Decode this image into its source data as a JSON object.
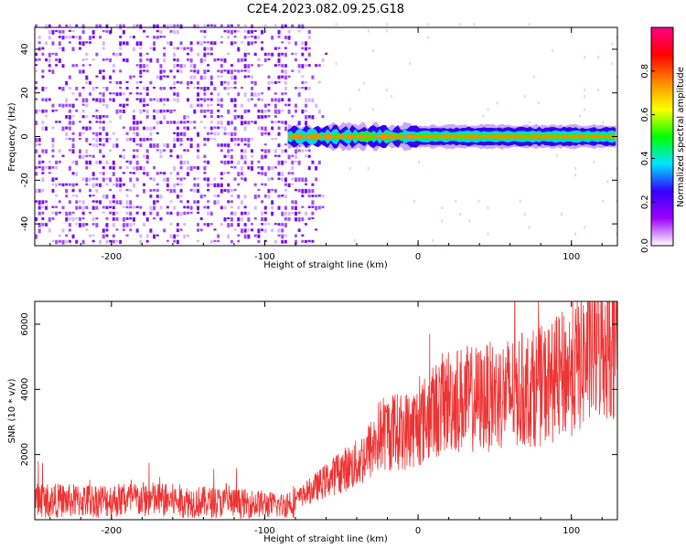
{
  "title": "C2E4.2023.082.09.25.G18",
  "chart_data": [
    {
      "type": "heatmap",
      "xlabel": "Height of straight line (km)",
      "ylabel": "Frequency (Hz)",
      "xlim": [
        -250,
        130
      ],
      "ylim": [
        -50,
        50
      ],
      "x_ticks": [
        -200,
        -100,
        0,
        100
      ],
      "x_tick_labels": [
        "-200",
        "-100",
        "0",
        "100"
      ],
      "y_ticks": [
        -40,
        -20,
        0,
        20,
        40
      ],
      "y_tick_labels": [
        "-40",
        "-20",
        "0",
        "20",
        "40"
      ],
      "colorbar": {
        "label": "Normalized spectral amplitude",
        "range": [
          0,
          1
        ],
        "ticks": [
          0.0,
          0.2,
          0.4,
          0.6,
          0.8
        ],
        "tick_labels": [
          "0.0",
          "0.2",
          "0.4",
          "0.6",
          "0.8"
        ],
        "colormap": [
          "#ffffff",
          "#9f00ff",
          "#3300ff",
          "#00e5ff",
          "#00ff00",
          "#ffff00",
          "#ff8800",
          "#ff0000",
          "#ff0088"
        ]
      },
      "regions": [
        {
          "x_range": [
            -250,
            -75
          ],
          "y_range": [
            -50,
            50
          ],
          "description_level": "broadband noise",
          "amplitude": 0.1
        },
        {
          "x_range": [
            -85,
            130
          ],
          "y_center": 0,
          "y_halfwidth": 4,
          "description_level": "signal line",
          "amplitude": 0.7
        }
      ]
    },
    {
      "type": "line",
      "xlabel": "Height of straight line (km)",
      "ylabel": "SNR (10 * v/v)",
      "xlim": [
        -250,
        130
      ],
      "ylim": [
        0,
        6700
      ],
      "x_ticks": [
        -200,
        -100,
        0,
        100
      ],
      "x_tick_labels": [
        "-200",
        "-100",
        "0",
        "100"
      ],
      "y_ticks": [
        2000,
        4000,
        6000
      ],
      "y_tick_labels": [
        "2000",
        "4000",
        "6000"
      ],
      "series": [
        {
          "color": "#ee3333",
          "x": [
            -250,
            -225,
            -200,
            -175,
            -150,
            -125,
            -100,
            -90,
            -80,
            -70,
            -60,
            -50,
            -40,
            -30,
            -25,
            -20,
            -10,
            0,
            10,
            20,
            30,
            40,
            50,
            60,
            70,
            80,
            90,
            100,
            110,
            120,
            130
          ],
          "y": [
            600,
            580,
            600,
            620,
            560,
            520,
            480,
            420,
            600,
            900,
            1200,
            1500,
            1700,
            2200,
            2600,
            2700,
            2700,
            2900,
            3300,
            3700,
            3700,
            3700,
            3800,
            3900,
            4000,
            4100,
            4300,
            4600,
            5000,
            5400,
            5500
          ]
        }
      ]
    }
  ]
}
